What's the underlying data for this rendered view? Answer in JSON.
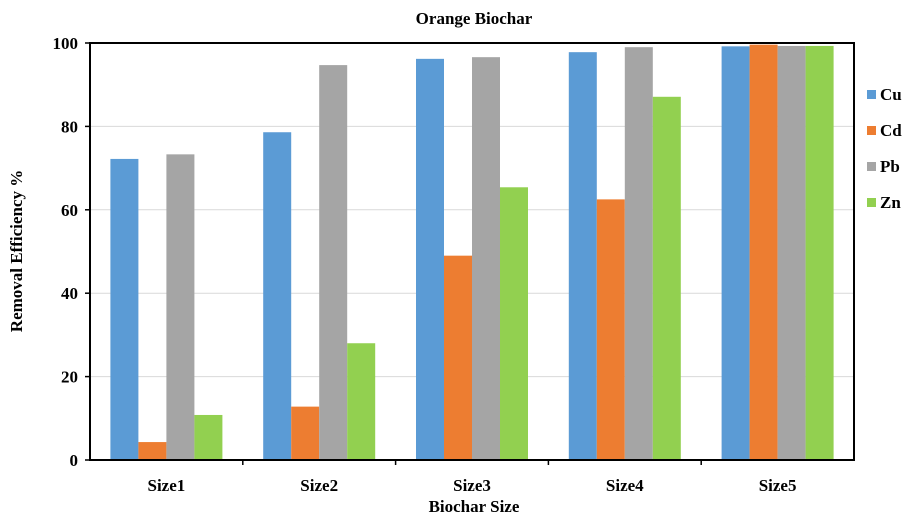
{
  "chart_data": {
    "type": "bar",
    "title": "Orange  Biochar",
    "xlabel": "Biochar Size",
    "ylabel": "Removal Efficiency %",
    "categories": [
      "Size1",
      "Size2",
      "Size3",
      "Size4",
      "Size5"
    ],
    "ylim": [
      0,
      100
    ],
    "yticks": [
      0,
      20,
      40,
      60,
      80,
      100
    ],
    "grid": true,
    "legend_position": "right",
    "series": [
      {
        "name": "Cu",
        "color": "#5b9bd5",
        "values": [
          72.2,
          78.6,
          96.2,
          97.8,
          99.2
        ]
      },
      {
        "name": "Cd",
        "color": "#ed7d31",
        "values": [
          4.3,
          12.8,
          49.0,
          62.5,
          99.6
        ]
      },
      {
        "name": "Pb",
        "color": "#a5a5a5",
        "values": [
          73.3,
          94.7,
          96.6,
          99.0,
          99.3
        ]
      },
      {
        "name": "Zn",
        "color": "#92d050",
        "values": [
          10.8,
          28.0,
          65.4,
          87.1,
          99.3
        ]
      }
    ]
  }
}
